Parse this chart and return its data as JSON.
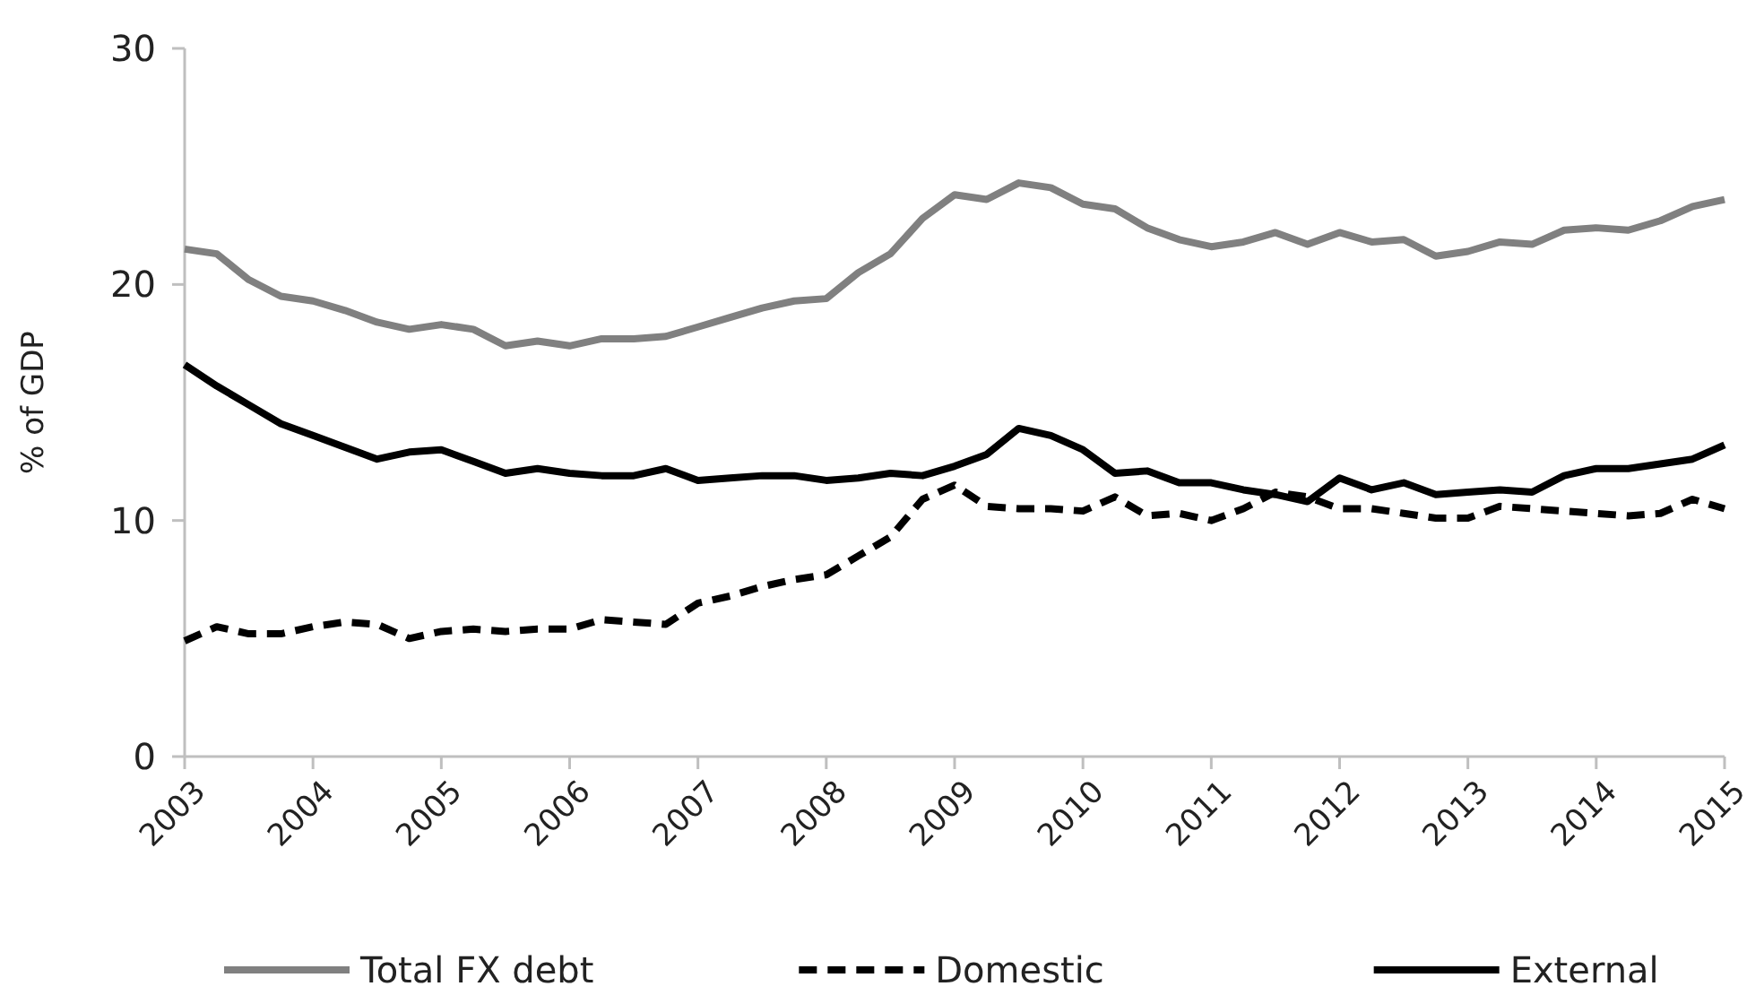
{
  "chart_data": {
    "type": "line",
    "ylabel": "% of GDP",
    "x": [
      2003,
      2003.25,
      2003.5,
      2003.75,
      2004,
      2004.25,
      2004.5,
      2004.75,
      2005,
      2005.25,
      2005.5,
      2005.75,
      2006,
      2006.25,
      2006.5,
      2006.75,
      2007,
      2007.25,
      2007.5,
      2007.75,
      2008,
      2008.25,
      2008.5,
      2008.75,
      2009,
      2009.25,
      2009.5,
      2009.75,
      2010,
      2010.25,
      2010.5,
      2010.75,
      2011,
      2011.25,
      2011.5,
      2011.75,
      2012,
      2012.25,
      2012.5,
      2012.75,
      2013,
      2013.25,
      2013.5,
      2013.75,
      2014,
      2014.25,
      2014.5,
      2014.75,
      2015
    ],
    "xlim": [
      2003,
      2015
    ],
    "xticks": [
      2003,
      2004,
      2005,
      2006,
      2007,
      2008,
      2009,
      2010,
      2011,
      2012,
      2013,
      2014,
      2015
    ],
    "ylim": [
      0,
      30
    ],
    "yticks": [
      0,
      10,
      20,
      30
    ],
    "grid": false,
    "legend": "bottom",
    "series": [
      {
        "name": "Total FX debt",
        "color": "#808080",
        "line_style": "solid",
        "values": [
          21.5,
          21.3,
          20.2,
          19.5,
          19.3,
          18.9,
          18.4,
          18.1,
          18.3,
          18.1,
          17.4,
          17.6,
          17.4,
          17.7,
          17.7,
          17.8,
          18.2,
          18.6,
          19.0,
          19.3,
          19.4,
          20.5,
          21.3,
          22.8,
          23.8,
          23.6,
          24.3,
          24.1,
          23.4,
          23.2,
          22.4,
          21.9,
          21.6,
          21.8,
          22.2,
          21.7,
          22.2,
          21.8,
          21.9,
          21.2,
          21.4,
          21.8,
          21.7,
          22.3,
          22.4,
          22.3,
          22.7,
          23.3,
          23.6
        ]
      },
      {
        "name": "Domestic",
        "color": "#000000",
        "line_style": "dashed",
        "values": [
          4.9,
          5.5,
          5.2,
          5.2,
          5.5,
          5.7,
          5.6,
          5.0,
          5.3,
          5.4,
          5.3,
          5.4,
          5.4,
          5.8,
          5.7,
          5.6,
          6.5,
          6.8,
          7.2,
          7.5,
          7.7,
          8.5,
          9.3,
          10.9,
          11.5,
          10.6,
          10.5,
          10.5,
          10.4,
          11.0,
          10.2,
          10.3,
          10.0,
          10.5,
          11.2,
          11.0,
          10.5,
          10.5,
          10.3,
          10.1,
          10.1,
          10.6,
          10.5,
          10.4,
          10.3,
          10.2,
          10.3,
          10.9,
          10.5
        ]
      },
      {
        "name": "External",
        "color": "#000000",
        "line_style": "solid",
        "values": [
          16.6,
          15.7,
          14.9,
          14.1,
          13.6,
          13.1,
          12.6,
          12.9,
          13.0,
          12.5,
          12.0,
          12.2,
          12.0,
          11.9,
          11.9,
          12.2,
          11.7,
          11.8,
          11.9,
          11.9,
          11.7,
          11.8,
          12.0,
          11.9,
          12.3,
          12.8,
          13.9,
          13.6,
          13.0,
          12.0,
          12.1,
          11.6,
          11.6,
          11.3,
          11.1,
          10.8,
          11.8,
          11.3,
          11.6,
          11.1,
          11.2,
          11.3,
          11.2,
          11.9,
          12.2,
          12.2,
          12.4,
          12.6,
          13.2
        ]
      }
    ]
  }
}
